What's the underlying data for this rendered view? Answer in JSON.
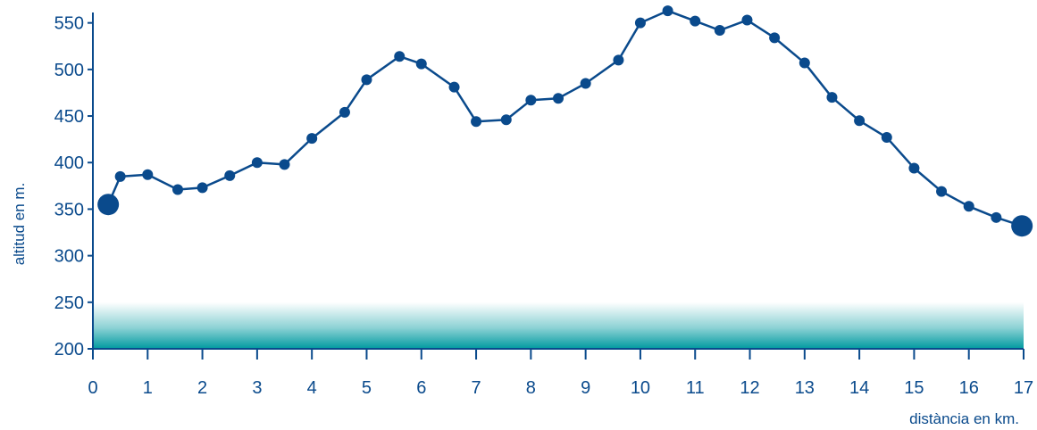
{
  "chart_data": {
    "type": "line",
    "title": "",
    "xlabel": "distància en km.",
    "ylabel": "altitud en m.",
    "xlim": [
      0,
      17
    ],
    "ylim": [
      200,
      565
    ],
    "x_ticks": [
      0,
      1,
      2,
      3,
      4,
      5,
      6,
      7,
      8,
      9,
      10,
      11,
      12,
      13,
      14,
      15,
      16,
      17
    ],
    "y_ticks": [
      200,
      250,
      300,
      350,
      400,
      450,
      500,
      550
    ],
    "grid": false,
    "colors": {
      "line": "#0a4a8c",
      "axis": "#0a4a8c",
      "band": "#009aa0"
    },
    "start_point": {
      "x": 0.28,
      "y": 355
    },
    "end_point": {
      "x": 16.97,
      "y": 332
    },
    "series": [
      {
        "x": [
          0.28,
          0.5,
          1.0,
          1.55,
          2.0,
          2.5,
          3.0,
          3.5,
          4.0,
          4.6,
          5.0,
          5.6,
          6.0,
          6.6,
          7.0,
          7.55,
          8.0,
          8.5,
          9.0,
          9.6,
          10.0,
          10.5,
          11.0,
          11.45,
          11.95,
          12.45,
          13.0,
          13.5,
          14.0,
          14.5,
          15.0,
          15.5,
          16.0,
          16.5,
          16.97
        ],
        "y": [
          355,
          385,
          387,
          371,
          373,
          386,
          400,
          398,
          426,
          454,
          489,
          514,
          506,
          481,
          444,
          446,
          467,
          469,
          485,
          510,
          550,
          563,
          552,
          542,
          553,
          534,
          507,
          470,
          445,
          427,
          394,
          369,
          353,
          341,
          332
        ]
      }
    ]
  }
}
